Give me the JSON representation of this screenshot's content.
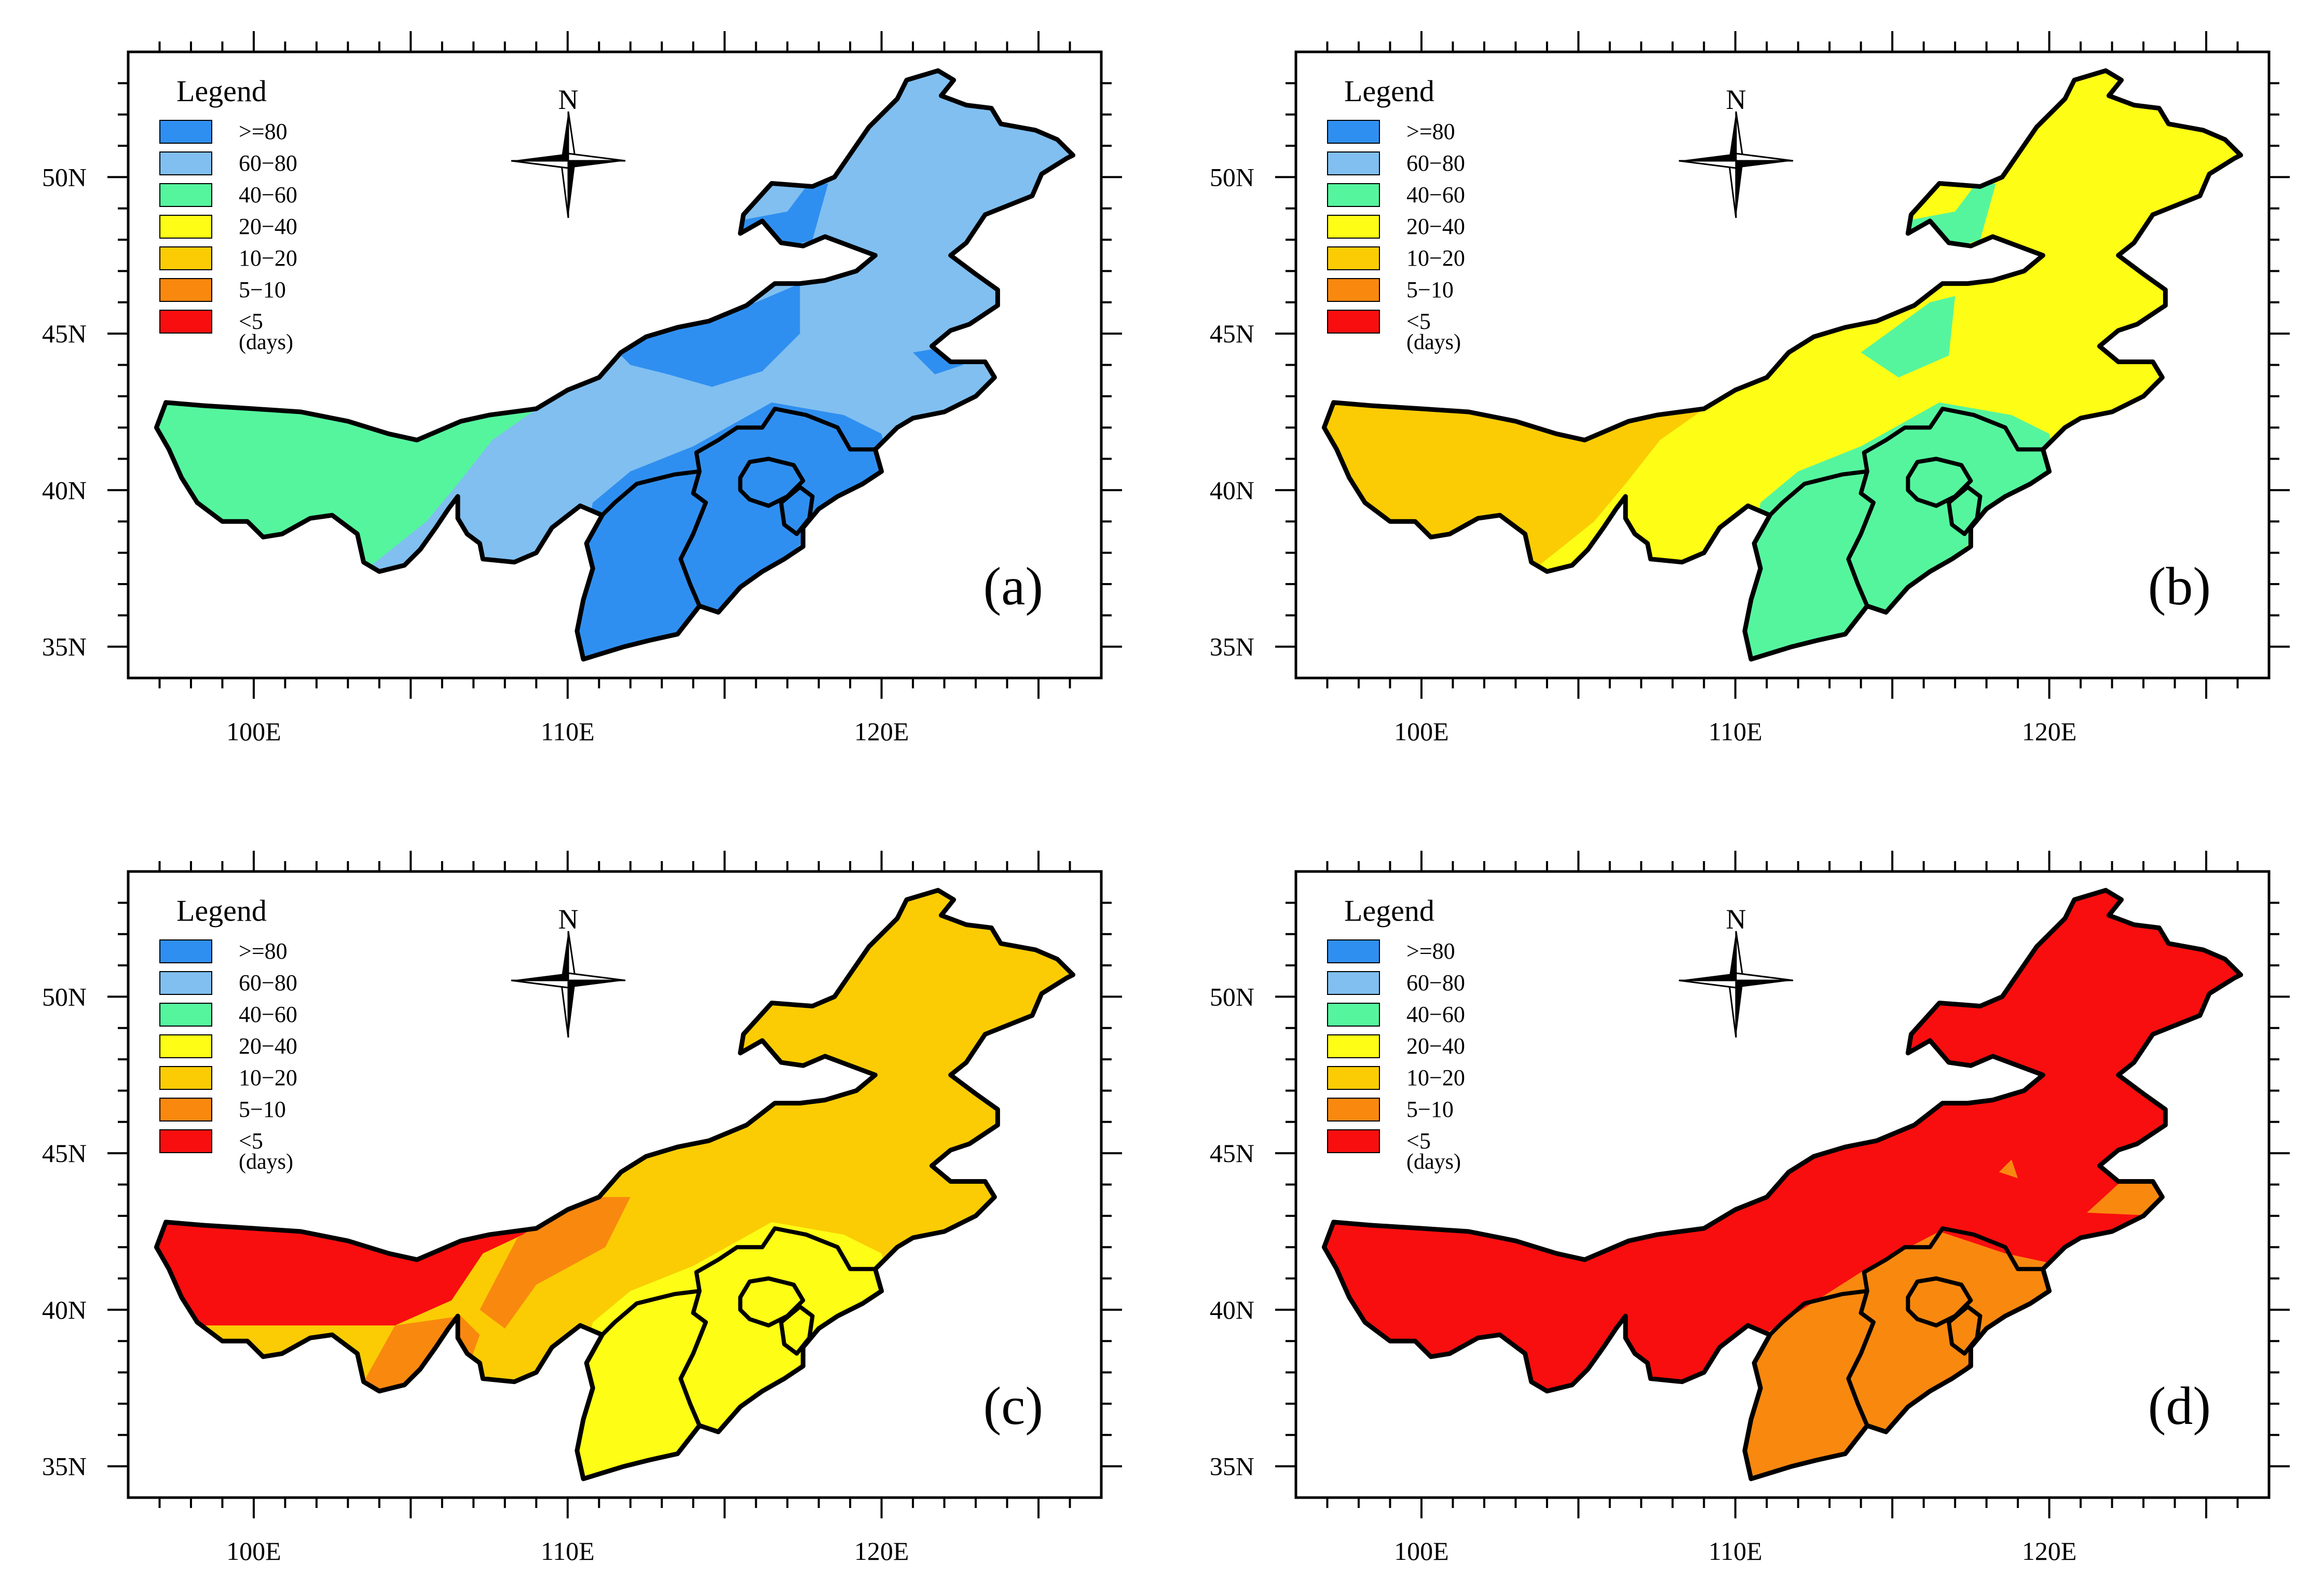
{
  "legend": {
    "title": "Legend",
    "unit": "(days)",
    "classes": [
      {
        "label": ">=80",
        "color": "#2f8ff0"
      },
      {
        "label": "60−80",
        "color": "#80bff0"
      },
      {
        "label": "40−60",
        "color": "#55f59e"
      },
      {
        "label": "20−40",
        "color": "#fdfd16"
      },
      {
        "label": "10−20",
        "color": "#fbcc03"
      },
      {
        "label": "5−10",
        "color": "#f9880f"
      },
      {
        "label": "<5",
        "color": "#f80e0e"
      }
    ]
  },
  "compass": {
    "label": "N",
    "icon": "north-arrow-compass"
  },
  "axes": {
    "x": {
      "ticks": [
        {
          "value": 100,
          "label": "100E"
        },
        {
          "value": 110,
          "label": "110E"
        },
        {
          "value": 120,
          "label": "120E"
        }
      ]
    },
    "y": {
      "ticks": [
        {
          "value": 50,
          "label": "50N"
        },
        {
          "value": 45,
          "label": "45N"
        },
        {
          "value": 40,
          "label": "40N"
        },
        {
          "value": 35,
          "label": "35N"
        }
      ]
    },
    "lon_range": [
      96,
      127
    ],
    "lat_range": [
      34,
      54
    ]
  },
  "panels": [
    {
      "label": "(a)",
      "base_class": "60−80",
      "regions": [
        {
          "class": "40−60",
          "where": "western Inner Mongolia"
        },
        {
          "class": ">=80",
          "where": "northeast Inner Mongolia, central Inner Mongolia, Shanxi, Hebei"
        }
      ]
    },
    {
      "label": "(b)",
      "base_class": "20−40",
      "regions": [
        {
          "class": "10−20",
          "where": "western Inner Mongolia"
        },
        {
          "class": "40−60",
          "where": "northeast Inner Mongolia, central Inner Mongolia, Shanxi, Hebei"
        }
      ]
    },
    {
      "label": "(c)",
      "base_class": "10−20",
      "regions": [
        {
          "class": "<5",
          "where": "western Inner Mongolia"
        },
        {
          "class": "5−10",
          "where": "southwest Inner Mongolia, central Inner Mongolia"
        },
        {
          "class": "20−40",
          "where": "Shanxi, Hebei"
        }
      ]
    },
    {
      "label": "(d)",
      "base_class": "<5",
      "regions": [
        {
          "class": "5−10",
          "where": "Shanxi, Hebei, eastern Inner Mongolia"
        }
      ]
    }
  ]
}
